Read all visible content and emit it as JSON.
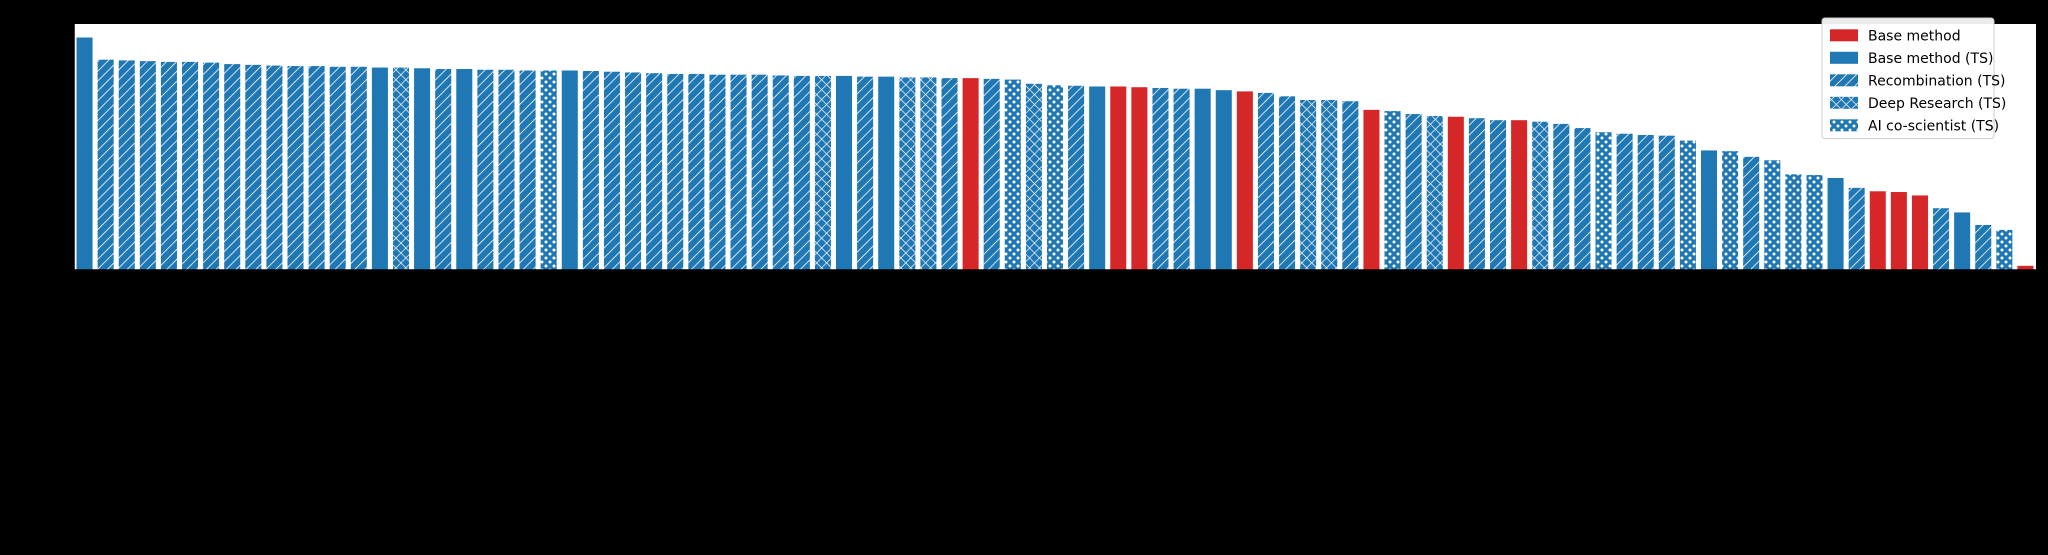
{
  "chart_data": {
    "type": "bar",
    "title": "",
    "xlabel": "",
    "ylabel": "",
    "ylim": [
      0,
      100
    ],
    "grid": false,
    "legend_position": "top-right",
    "series_styles": [
      {
        "key": "base",
        "label": "Base method",
        "color": "#d62728",
        "pattern": "solid"
      },
      {
        "key": "base_ts",
        "label": "Base method (TS)",
        "color": "#1f77b4",
        "pattern": "solid"
      },
      {
        "key": "recomb",
        "label": "Recombination (TS)",
        "color": "#1f77b4",
        "pattern": "diagonal"
      },
      {
        "key": "deep",
        "label": "Deep Research (TS)",
        "color": "#1f77b4",
        "pattern": "crosshatch"
      },
      {
        "key": "cosci",
        "label": "AI co-scientist (TS)",
        "color": "#1f77b4",
        "pattern": "dots"
      }
    ],
    "bars": [
      {
        "s": "base_ts",
        "v": 94.5
      },
      {
        "s": "recomb",
        "v": 85.5
      },
      {
        "s": "recomb",
        "v": 85.2
      },
      {
        "s": "recomb",
        "v": 84.9
      },
      {
        "s": "recomb",
        "v": 84.6
      },
      {
        "s": "recomb",
        "v": 84.6
      },
      {
        "s": "recomb",
        "v": 84.3
      },
      {
        "s": "recomb",
        "v": 83.7
      },
      {
        "s": "recomb",
        "v": 83.4
      },
      {
        "s": "recomb",
        "v": 83.1
      },
      {
        "s": "recomb",
        "v": 82.9
      },
      {
        "s": "recomb",
        "v": 82.9
      },
      {
        "s": "recomb",
        "v": 82.6
      },
      {
        "s": "recomb",
        "v": 82.6
      },
      {
        "s": "base_ts",
        "v": 82.3
      },
      {
        "s": "deep",
        "v": 82.3
      },
      {
        "s": "base_ts",
        "v": 82.0
      },
      {
        "s": "recomb",
        "v": 81.7
      },
      {
        "s": "base_ts",
        "v": 81.7
      },
      {
        "s": "recomb",
        "v": 81.4
      },
      {
        "s": "recomb",
        "v": 81.4
      },
      {
        "s": "recomb",
        "v": 81.1
      },
      {
        "s": "cosci",
        "v": 81.1
      },
      {
        "s": "base_ts",
        "v": 81.1
      },
      {
        "s": "recomb",
        "v": 80.9
      },
      {
        "s": "recomb",
        "v": 80.6
      },
      {
        "s": "recomb",
        "v": 80.3
      },
      {
        "s": "recomb",
        "v": 80.0
      },
      {
        "s": "recomb",
        "v": 79.7
      },
      {
        "s": "recomb",
        "v": 79.7
      },
      {
        "s": "recomb",
        "v": 79.4
      },
      {
        "s": "recomb",
        "v": 79.4
      },
      {
        "s": "recomb",
        "v": 79.4
      },
      {
        "s": "recomb",
        "v": 79.1
      },
      {
        "s": "recomb",
        "v": 78.9
      },
      {
        "s": "deep",
        "v": 78.9
      },
      {
        "s": "base_ts",
        "v": 78.9
      },
      {
        "s": "recomb",
        "v": 78.6
      },
      {
        "s": "base_ts",
        "v": 78.6
      },
      {
        "s": "deep",
        "v": 78.3
      },
      {
        "s": "deep",
        "v": 78.3
      },
      {
        "s": "recomb",
        "v": 78.0
      },
      {
        "s": "base",
        "v": 78.0
      },
      {
        "s": "recomb",
        "v": 77.7
      },
      {
        "s": "cosci",
        "v": 77.4
      },
      {
        "s": "deep",
        "v": 75.7
      },
      {
        "s": "cosci",
        "v": 75.1
      },
      {
        "s": "recomb",
        "v": 74.9
      },
      {
        "s": "base_ts",
        "v": 74.6
      },
      {
        "s": "base",
        "v": 74.6
      },
      {
        "s": "base",
        "v": 74.3
      },
      {
        "s": "recomb",
        "v": 74.0
      },
      {
        "s": "recomb",
        "v": 73.7
      },
      {
        "s": "base_ts",
        "v": 73.7
      },
      {
        "s": "base_ts",
        "v": 73.1
      },
      {
        "s": "base",
        "v": 72.6
      },
      {
        "s": "recomb",
        "v": 72.0
      },
      {
        "s": "recomb",
        "v": 70.6
      },
      {
        "s": "deep",
        "v": 69.1
      },
      {
        "s": "deep",
        "v": 69.1
      },
      {
        "s": "recomb",
        "v": 68.6
      },
      {
        "s": "base",
        "v": 65.1
      },
      {
        "s": "cosci",
        "v": 64.6
      },
      {
        "s": "recomb",
        "v": 63.4
      },
      {
        "s": "deep",
        "v": 62.6
      },
      {
        "s": "base",
        "v": 62.3
      },
      {
        "s": "recomb",
        "v": 61.7
      },
      {
        "s": "recomb",
        "v": 60.9
      },
      {
        "s": "base",
        "v": 60.9
      },
      {
        "s": "deep",
        "v": 60.3
      },
      {
        "s": "recomb",
        "v": 59.4
      },
      {
        "s": "recomb",
        "v": 57.7
      },
      {
        "s": "cosci",
        "v": 56.0
      },
      {
        "s": "recomb",
        "v": 55.4
      },
      {
        "s": "recomb",
        "v": 54.9
      },
      {
        "s": "recomb",
        "v": 54.6
      },
      {
        "s": "cosci",
        "v": 52.6
      },
      {
        "s": "base_ts",
        "v": 48.6
      },
      {
        "s": "cosci",
        "v": 48.3
      },
      {
        "s": "recomb",
        "v": 46.0
      },
      {
        "s": "cosci",
        "v": 44.6
      },
      {
        "s": "cosci",
        "v": 38.9
      },
      {
        "s": "cosci",
        "v": 38.6
      },
      {
        "s": "base_ts",
        "v": 37.4
      },
      {
        "s": "recomb",
        "v": 33.4
      },
      {
        "s": "base",
        "v": 32.0
      },
      {
        "s": "base",
        "v": 31.7
      },
      {
        "s": "base",
        "v": 30.3
      },
      {
        "s": "recomb",
        "v": 25.1
      },
      {
        "s": "base_ts",
        "v": 23.4
      },
      {
        "s": "recomb",
        "v": 18.3
      },
      {
        "s": "cosci",
        "v": 16.3
      },
      {
        "s": "base",
        "v": 1.7
      }
    ]
  }
}
